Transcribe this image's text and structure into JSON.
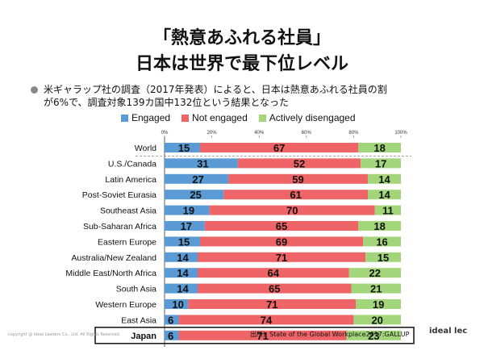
{
  "header": {
    "title_line1": "「熱意あふれる社員」",
    "title_line2": "日本は世界で最下位レベル"
  },
  "bullet": {
    "line1": "米ギャラップ社の調査（2017年発表）によると、日本は熱意あふれる社員の割",
    "line2": "が6%で、調査対象139カ国中132位という結果となった"
  },
  "footer": {
    "copyright": "copyright @ Ideal Leaders Co., Ltd. All Rights Reserved.",
    "source": "出所）State of the Global Workplace2017:GALLUP",
    "logo": "ideal lec"
  },
  "chart_data": {
    "type": "bar",
    "orientation": "horizontal",
    "stacked": true,
    "xlim": [
      0,
      100
    ],
    "tick_labels": [
      "0%",
      "20%",
      "40%",
      "60%",
      "80%",
      "100%"
    ],
    "legend": [
      "Engaged",
      "Not engaged",
      "Actively disengaged"
    ],
    "colors": [
      "#5b9bd5",
      "#ef6466",
      "#a3d67a"
    ],
    "categories": [
      "World",
      "U.S./Canada",
      "Latin America",
      "Post-Soviet Eurasia",
      "Southeast Asia",
      "Sub-Saharan Africa",
      "Eastern Europe",
      "Australia/New Zealand",
      "Middle East/North Africa",
      "South Asia",
      "Western Europe",
      "East Asia",
      "Japan"
    ],
    "series": [
      {
        "name": "Engaged",
        "values": [
          15,
          31,
          27,
          25,
          19,
          17,
          15,
          14,
          14,
          14,
          10,
          6,
          6
        ]
      },
      {
        "name": "Not engaged",
        "values": [
          67,
          52,
          59,
          61,
          70,
          65,
          69,
          71,
          64,
          65,
          71,
          74,
          71
        ]
      },
      {
        "name": "Actively disengaged",
        "values": [
          18,
          17,
          14,
          14,
          11,
          18,
          16,
          15,
          22,
          21,
          19,
          20,
          23
        ]
      }
    ],
    "highlight": "Japan"
  }
}
